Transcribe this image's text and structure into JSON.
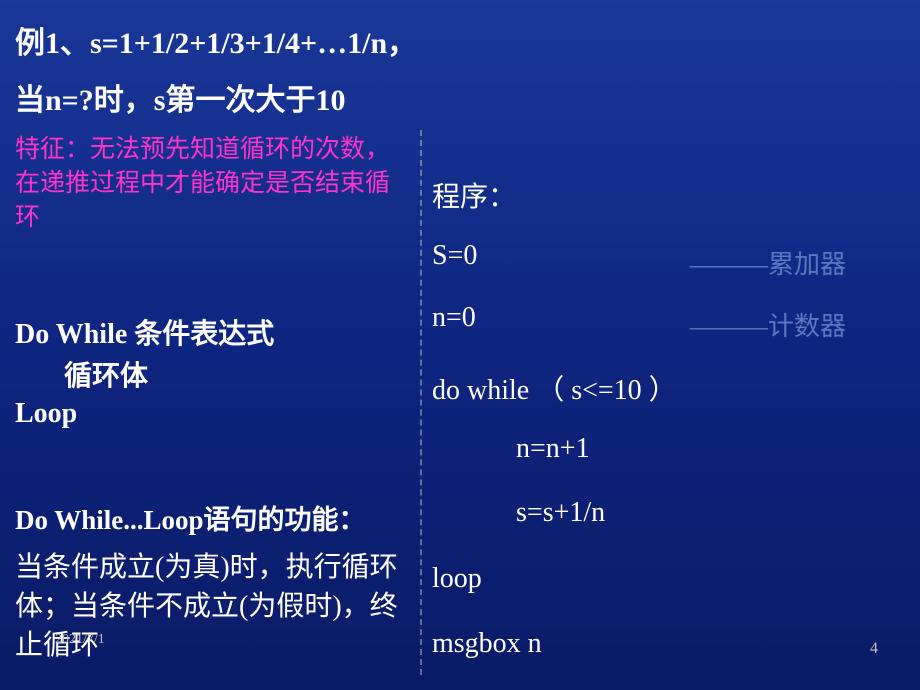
{
  "title": {
    "line1": "例1、s=1+1/2+1/3+1/4+…1/n，",
    "line2": "当n=?时，s第一次大于10"
  },
  "feature": "特征：无法预先知道循环的次数，在递推过程中才能确定是否结束循环",
  "syntax": {
    "do": "Do  While  条件表达式",
    "body": " 循环体",
    "loop": "Loop"
  },
  "function": {
    "title": "Do While...Loop语句的功能：",
    "desc": "当条件成立(为真)时，执行循环体；当条件不成立(为假时)，终止循环"
  },
  "code": {
    "label": "程序：",
    "s0": "S=0",
    "comment_acc": "———累加器",
    "n0": "n=0",
    "comment_cnt": "———计数器",
    "dowhile": "do while （ s<=10  ）",
    "nn1": "n=n+1",
    "ss": "s=s+1/n",
    "loop": "loop",
    "msgbox": "msgbox n"
  },
  "footer": {
    "date": "2021/7/1",
    "page": "4"
  },
  "style": {
    "bg_gradient_top": "#1a3799",
    "bg_gradient_mid": "#0e2580",
    "bg_gradient_bottom": "#0a1b66",
    "title_color": "#ffffff",
    "feature_color": "#ff33cc",
    "comment_color": "#5c77c1",
    "text_color": "#ffffff",
    "footer_color": "#c0c0c0",
    "divider_color": "rgba(255,255,255,0.35)",
    "title_fontsize": 30,
    "body_fontsize": 28,
    "feature_fontsize": 25,
    "comment_fontsize": 26,
    "footer_fontsize": 14,
    "page_fontsize": 16
  }
}
